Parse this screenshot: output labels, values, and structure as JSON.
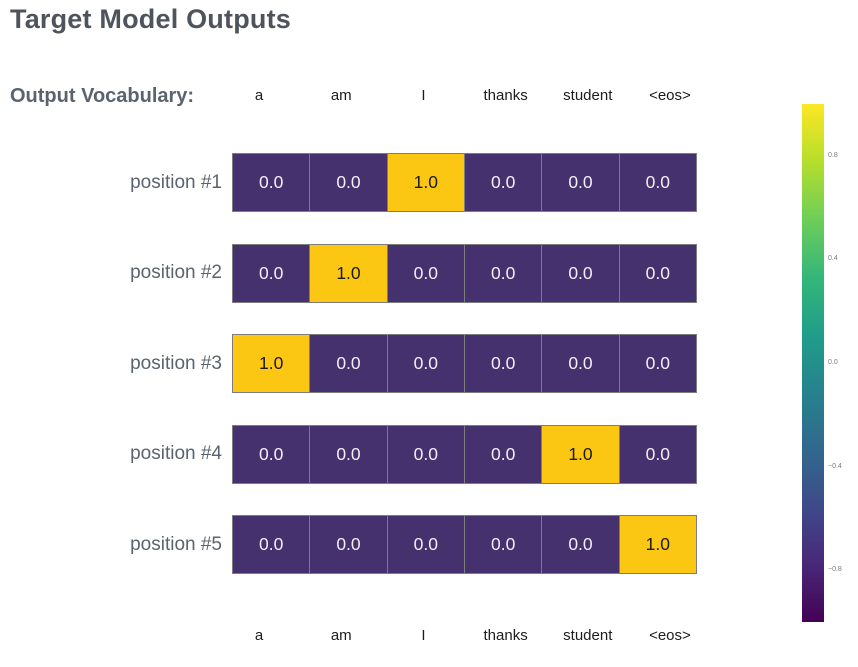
{
  "title": "Target Model Outputs",
  "vocab_label": "Output Vocabulary:",
  "chart_data": {
    "type": "heatmap",
    "title": "Target Model Outputs",
    "columns": [
      "a",
      "am",
      "I",
      "thanks",
      "student",
      "<eos>"
    ],
    "rows": [
      "position #1",
      "position #2",
      "position #3",
      "position #4",
      "position #5"
    ],
    "values": [
      [
        0.0,
        0.0,
        1.0,
        0.0,
        0.0,
        0.0
      ],
      [
        0.0,
        1.0,
        0.0,
        0.0,
        0.0,
        0.0
      ],
      [
        1.0,
        0.0,
        0.0,
        0.0,
        0.0,
        0.0
      ],
      [
        0.0,
        0.0,
        0.0,
        0.0,
        1.0,
        0.0
      ],
      [
        0.0,
        0.0,
        0.0,
        0.0,
        0.0,
        1.0
      ]
    ],
    "value_format": "0.0",
    "colormap": "viridis",
    "legend_position": "right",
    "grid": false,
    "colorbar": {
      "range": [
        -1,
        1
      ],
      "ticks": [
        0.8,
        0.4,
        0.0,
        -0.4,
        -0.8
      ],
      "tick_labels": [
        "0.8",
        "0.4",
        "0.0",
        "−0.4",
        "−0.8"
      ],
      "gradient_top_to_bottom": [
        "#fde725",
        "#b5de2b",
        "#6ece58",
        "#35b779",
        "#1f9e89",
        "#26828e",
        "#31688e",
        "#3e4a89",
        "#482878",
        "#440154"
      ]
    }
  },
  "colors": {
    "background": "#ffffff",
    "title_text": "#4d545c",
    "label_text": "#5a646e",
    "column_label_text": "#1c1c1c",
    "cell_low": "#46316f",
    "cell_high": "#fcc713",
    "cell_border": "#7d7d7d",
    "value_text_on_low": "#f2eff7",
    "value_text_on_high": "#1a1a1a",
    "colorbar_tick_text": "#7a7a7a"
  }
}
